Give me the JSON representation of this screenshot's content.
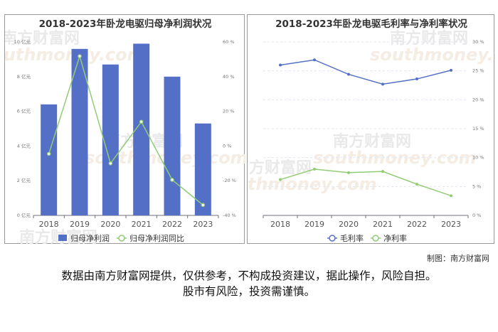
{
  "charts": {
    "left": {
      "title": "2018-2023年卧龙电驱归母净利润状况",
      "watermarks": [
        "南方财富网",
        "southmoney.com"
      ]
    },
    "right": {
      "title": "2018-2023年卧龙电驱毛利率与净利率状况",
      "watermarks": [
        "南方财富网",
        "southmoney.com"
      ]
    }
  },
  "chart_data": [
    {
      "type": "bar",
      "title": "2018-2023年卧龙电驱归母净利润状况",
      "categories": [
        "2018",
        "2019",
        "2020",
        "2021",
        "2022",
        "2023"
      ],
      "y_left": {
        "ticks": [
          "0 亿元",
          "2 亿元",
          "4 亿元",
          "6 亿元",
          "8 亿元",
          "10 亿元"
        ],
        "range": [
          0,
          10
        ]
      },
      "y_right": {
        "ticks": [
          "-40 %",
          "-20 %",
          "0 %",
          "20 %",
          "40 %",
          "60 %"
        ],
        "range": [
          -40,
          60
        ]
      },
      "series": [
        {
          "name": "归母净利润",
          "type": "bar",
          "axis": "left",
          "values": [
            6.4,
            9.6,
            8.7,
            9.9,
            8.0,
            5.3
          ],
          "color": "#5470c6"
        },
        {
          "name": "归母净利润同比",
          "type": "line",
          "axis": "right",
          "values": [
            -4.5,
            51.8,
            -10.0,
            14.0,
            -19.5,
            -34.0
          ],
          "color": "#91cc75"
        }
      ],
      "legend": "bottom-center",
      "grid": false
    },
    {
      "type": "line",
      "title": "2018-2023年卧龙电驱毛利率与净利率状况",
      "categories": [
        "2018",
        "2019",
        "2020",
        "2021",
        "2022",
        "2023"
      ],
      "y_right": {
        "ticks": [
          "0 %",
          "5 %",
          "10 %",
          "15 %",
          "20 %",
          "25 %",
          "30 %"
        ],
        "range": [
          0,
          30
        ]
      },
      "series": [
        {
          "name": "毛利率",
          "values": [
            26.0,
            26.9,
            24.4,
            22.7,
            23.6,
            25.1
          ],
          "color": "#5470c6"
        },
        {
          "name": "净利率",
          "values": [
            6.2,
            8.0,
            7.4,
            7.6,
            5.4,
            3.4
          ],
          "color": "#91cc75"
        }
      ],
      "legend": "bottom-center",
      "grid": true
    }
  ],
  "footer": {
    "credit": "制图：南方财富网",
    "disclaimer_line1": "数据由南方财富网提供，仅供参考，不构成投资建议，据此操作，风险自担。",
    "disclaimer_line2": "股市有风险，投资需谨慎。"
  }
}
